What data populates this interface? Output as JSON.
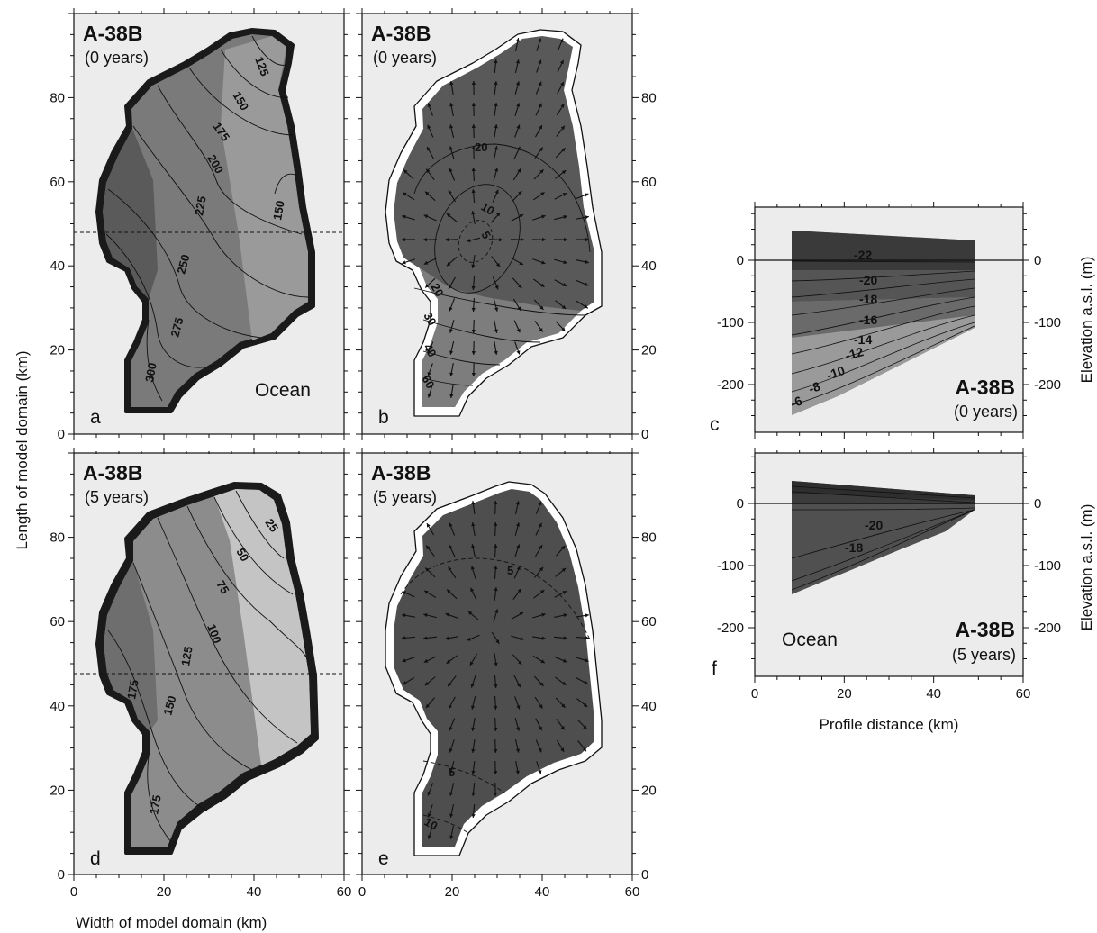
{
  "figure": {
    "title": "",
    "xlabel_map": "Width of model domain (km)",
    "ylabel_map": "Length of model domain (km)",
    "xlabel_profile": "Profile distance (km)",
    "ylabel_profile": "Elevation a.s.l. (m)",
    "colors": {
      "panel_bg": "#ececec",
      "ice_dark": "#4a4a4a",
      "ice_mid": "#808080",
      "ice_light": "#b8b8b8",
      "ice_vlight": "#d2d2d2",
      "ink": "#111111"
    }
  },
  "panels": {
    "a": {
      "letter": "a",
      "name": "A-38B",
      "time": "(0 years)",
      "ocean": "Ocean",
      "contours": [
        "125",
        "150",
        "175",
        "200",
        "225",
        "150",
        "250",
        "275",
        "300"
      ]
    },
    "b": {
      "letter": "b",
      "name": "A-38B",
      "time": "(0 years)",
      "contours": [
        "20",
        "10",
        "5",
        "20",
        "30",
        "40",
        "60"
      ]
    },
    "c": {
      "letter": "c",
      "name": "A-38B",
      "time": "(0 years)",
      "contours": [
        "-22",
        "-20",
        "-18",
        "-16",
        "-14",
        "-12",
        "-10",
        "-8",
        "-6"
      ]
    },
    "d": {
      "letter": "d",
      "name": "A-38B",
      "time": "(5 years)",
      "contours": [
        "25",
        "50",
        "75",
        "100",
        "125",
        "150",
        "175",
        "175"
      ]
    },
    "e": {
      "letter": "e",
      "name": "A-38B",
      "time": "(5 years)",
      "contours": [
        "5",
        "5",
        "10"
      ]
    },
    "f": {
      "letter": "f",
      "name": "A-38B",
      "time": "(5 years)",
      "ocean": "Ocean",
      "contours": [
        "-20",
        "-18"
      ]
    }
  },
  "axes": {
    "map_x": {
      "range": [
        0,
        60
      ],
      "ticks": [
        "0",
        "20",
        "40",
        "60"
      ]
    },
    "map_y": {
      "range": [
        0,
        100
      ],
      "ticks": [
        "0",
        "20",
        "40",
        "60",
        "80"
      ]
    },
    "profile_x": {
      "range": [
        0,
        60
      ],
      "ticks": [
        "0",
        "20",
        "40",
        "60"
      ]
    },
    "profile_y": {
      "range": [
        -250,
        75
      ],
      "ticks": [
        "0",
        "-100",
        "-200"
      ]
    }
  },
  "profile_line_y_km": 47
}
